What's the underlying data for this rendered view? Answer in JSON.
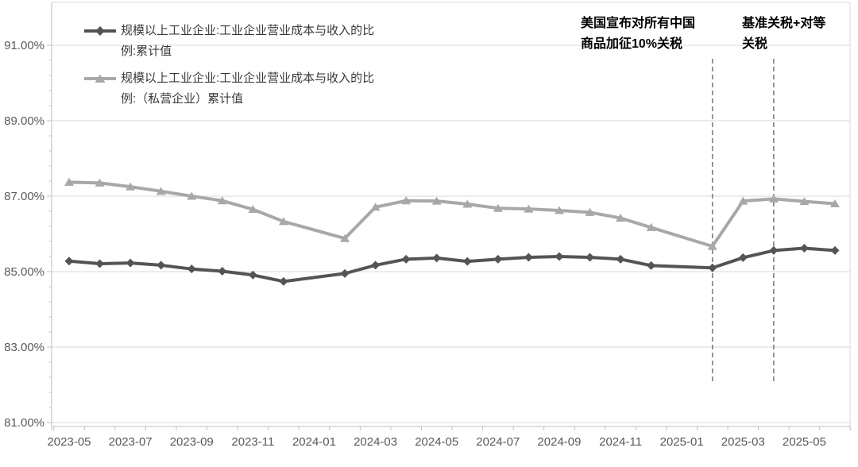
{
  "chart_data": {
    "type": "line",
    "title": "",
    "xlabel": "",
    "ylabel": "",
    "ylim": [
      81,
      91
    ],
    "y_major_step": 2,
    "y_minor_step": 0.4,
    "grid": "horizontal",
    "legend_position": "top-left",
    "y_tick_labels": [
      "91.00%",
      "89.00%",
      "87.00%",
      "85.00%",
      "83.00%",
      "81.00%"
    ],
    "y_tick_values": [
      91,
      89,
      87,
      85,
      83,
      81
    ],
    "x_tick_labels": [
      "2023-05",
      "2023-07",
      "2023-09",
      "2023-11",
      "2024-01",
      "2024-03",
      "2024-05",
      "2024-07",
      "2024-09",
      "2024-11",
      "2025-01",
      "2025-03",
      "2025-05"
    ],
    "x": [
      "2023-05",
      "2023-06",
      "2023-07",
      "2023-08",
      "2023-09",
      "2023-10",
      "2023-11",
      "2023-12",
      "2024-02",
      "2024-03",
      "2024-04",
      "2024-05",
      "2024-06",
      "2024-07",
      "2024-08",
      "2024-09",
      "2024-10",
      "2024-11",
      "2024-12",
      "2025-02",
      "2025-03",
      "2025-04",
      "2025-05",
      "2025-06"
    ],
    "series": [
      {
        "name": "规模以上工业企业:工业企业营业成本与收入的比例:累计值",
        "color": "#545454",
        "marker": "diamond",
        "values": [
          85.28,
          85.21,
          85.23,
          85.17,
          85.07,
          85.01,
          84.91,
          84.74,
          84.95,
          85.17,
          85.33,
          85.36,
          85.27,
          85.33,
          85.38,
          85.4,
          85.38,
          85.33,
          85.16,
          85.1,
          85.37,
          85.56,
          85.62,
          85.56
        ]
      },
      {
        "name": "规模以上工业企业:工业企业营业成本与收入的比例:（私营企业）累计值",
        "color": "#a8a8a8",
        "marker": "triangle",
        "values": [
          87.37,
          87.35,
          87.25,
          87.13,
          87.0,
          86.88,
          86.65,
          86.33,
          85.88,
          86.71,
          86.88,
          86.87,
          86.79,
          86.68,
          86.66,
          86.62,
          86.57,
          86.42,
          86.17,
          85.67,
          86.87,
          86.93,
          86.86,
          86.8
        ]
      }
    ],
    "annotations": [
      {
        "x": "2025-02",
        "text": "美国宣布对所有中国商品加征10%关税",
        "line1": "美国宣布对所有中国",
        "line2": "商品加征10%关税"
      },
      {
        "x": "2025-04",
        "text": "基准关税+对等关税",
        "line1": "基准关税+对等",
        "line2": "关税"
      }
    ],
    "colors": {
      "gridline": "#d9d9d9",
      "axis_line": "#bfbfbf",
      "tick_label": "#595959",
      "dashed_event_line": "#7f7f7f",
      "annotation_text": "#000000",
      "background": "#ffffff"
    }
  }
}
